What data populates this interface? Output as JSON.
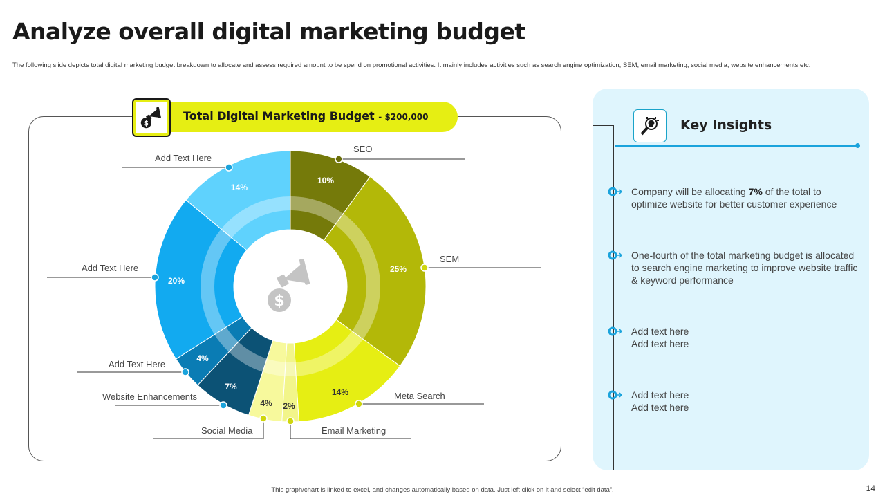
{
  "header": {
    "title": "Analyze overall digital marketing budget",
    "subtitle": "The following slide depicts total digital marketing budget breakdown to allocate and assess required amount to be spend on promotional activities. It mainly includes activities such as search engine optimization, SEM, email marketing, social media, website enhancements etc."
  },
  "budget": {
    "label": "Total Digital Marketing Budget",
    "amount": "- $200,000"
  },
  "chart_data": {
    "type": "pie",
    "variant": "donut",
    "value_unit": "%",
    "slices": [
      {
        "label": "SEO",
        "value": 10,
        "color": "#757a0a"
      },
      {
        "label": "SEM",
        "value": 25,
        "color": "#b3b808"
      },
      {
        "label": "Meta Search",
        "value": 14,
        "color": "#e6ee13"
      },
      {
        "label": "Email Marketing",
        "value": 2,
        "color": "#f2f58a"
      },
      {
        "label": "Social Media",
        "value": 4,
        "color": "#f7f99c"
      },
      {
        "label": "Website Enhancements",
        "value": 7,
        "color": "#0c5275"
      },
      {
        "label": "Add Text Here",
        "value": 4,
        "color": "#0a7cb4"
      },
      {
        "label": "Add Text Here",
        "value": 20,
        "color": "#12aaf0"
      },
      {
        "label": "Add Text Here",
        "value": 14,
        "color": "#5fd2fd"
      }
    ]
  },
  "insights": {
    "title": "Key Insights",
    "items": [
      {
        "before": "Company will be allocating ",
        "highlight": "7%",
        "after": " of the total to optimize website for better customer experience"
      },
      {
        "before": "One-fourth of the total marketing budget is allocated to search engine marketing to improve website traffic & keyword performance",
        "highlight": "",
        "after": ""
      },
      {
        "before": "Add text here Add text here",
        "highlight": "",
        "after": ""
      },
      {
        "before": "Add text here Add text here",
        "highlight": "",
        "after": ""
      }
    ],
    "colors": {
      "accent": "#1aa3dc",
      "panel": "#dff5fd"
    }
  },
  "footer": {
    "note": "This graph/chart is linked to excel, and changes automatically based on data. Just left click on it and select “edit data”.",
    "page": "14"
  },
  "icons": {
    "budget": "money-megaphone-icon",
    "insights": "lightbulb-magnifier-icon",
    "center": "money-megaphone-icon"
  }
}
